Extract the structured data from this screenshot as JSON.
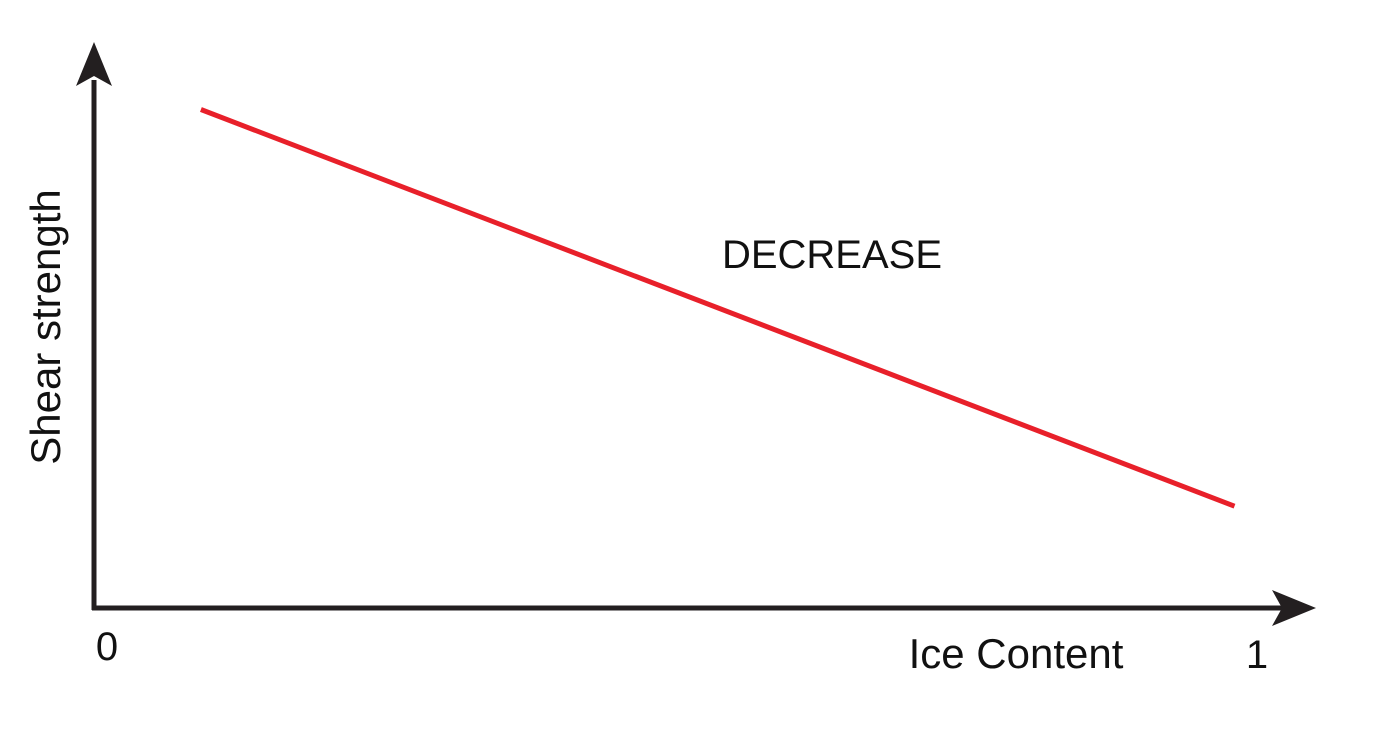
{
  "chart_data": {
    "type": "line",
    "title": "",
    "xlabel": "Ice Content",
    "ylabel": "Shear strength",
    "x_tick_labels": [
      "0",
      "1"
    ],
    "xlim": [
      0,
      1
    ],
    "grid": false,
    "series": [
      {
        "x": [
          0.09,
          0.96
        ],
        "y": [
          0.93,
          0.19
        ],
        "color": "#e8202a"
      }
    ],
    "annotations": [
      {
        "text": "DECREASE"
      }
    ]
  },
  "colors": {
    "axis": "#231f20",
    "line": "#e8202a"
  }
}
